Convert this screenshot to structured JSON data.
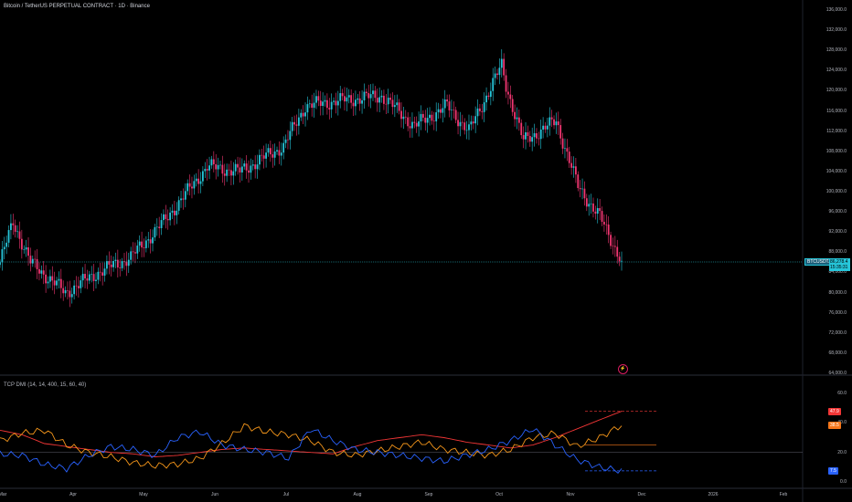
{
  "header": {
    "title": "Bitcoin / TetherUS PERPETUAL CONTRACT · 1D · Binance"
  },
  "price_scale": {
    "labels": [
      "136,000.0",
      "132,000.0",
      "128,000.0",
      "124,000.0",
      "120,000.0",
      "116,000.0",
      "112,000.0",
      "108,000.0",
      "104,000.0",
      "100,000.0",
      "96,000.0",
      "92,000.0",
      "88,000.0",
      "84,000.0",
      "80,000.0",
      "76,000.0",
      "72,000.0",
      "68,000.0",
      "64,000.0"
    ],
    "values": [
      136000,
      132000,
      128000,
      124000,
      120000,
      116000,
      112000,
      108000,
      104000,
      100000,
      96000,
      92000,
      88000,
      84000,
      80000,
      76000,
      72000,
      68000,
      64000
    ]
  },
  "symbol_badge": "BTCUSDT.P",
  "last_price": {
    "value": "86,278.4",
    "countdown": "15:35:31",
    "numeric": 86278.4
  },
  "indicator": {
    "title": "TCP DMI (14, 14, 400, 15, 60, 40)",
    "scale_labels": [
      "60.0",
      "40.0",
      "20.0",
      "0.0"
    ],
    "scale_values": [
      60,
      40,
      20,
      0
    ],
    "badges": [
      {
        "text": "47.9",
        "value": 47.9,
        "color": "#f23636"
      },
      {
        "text": "38.5",
        "value": 38.5,
        "color": "#f5761a"
      },
      {
        "text": "7.5",
        "value": 7.5,
        "color": "#2962ff"
      }
    ]
  },
  "time_axis": {
    "labels": [
      "Mar",
      "Apr",
      "May",
      "Jun",
      "Jul",
      "Aug",
      "Sep",
      "Oct",
      "Nov",
      "Dec",
      "2026",
      "Feb"
    ]
  },
  "event_icon": "lightning-icon",
  "colors": {
    "background": "#000000",
    "up_candle": "#26c6da",
    "down_candle": "#f23672",
    "line_red": "#f23636",
    "line_orange": "#f5961a",
    "line_blue": "#2962ff",
    "price_line": "#26c6da"
  },
  "chart_data": [
    {
      "type": "candlestick",
      "title": "Bitcoin / TetherUS PERPETUAL CONTRACT · 1D · Binance",
      "ylim": [
        64000,
        136000
      ],
      "x_range": [
        "Mar",
        "Nov"
      ],
      "closes_key_points": [
        {
          "t": 0,
          "price": 86000
        },
        {
          "t": 6,
          "price": 94000
        },
        {
          "t": 14,
          "price": 86000
        },
        {
          "t": 30,
          "price": 80000
        },
        {
          "t": 45,
          "price": 84000
        },
        {
          "t": 60,
          "price": 87000
        },
        {
          "t": 75,
          "price": 94000
        },
        {
          "t": 95,
          "price": 105000
        },
        {
          "t": 110,
          "price": 104000
        },
        {
          "t": 130,
          "price": 109000
        },
        {
          "t": 140,
          "price": 117000
        },
        {
          "t": 155,
          "price": 118000
        },
        {
          "t": 175,
          "price": 119000
        },
        {
          "t": 190,
          "price": 113000
        },
        {
          "t": 205,
          "price": 117000
        },
        {
          "t": 215,
          "price": 112000
        },
        {
          "t": 230,
          "price": 125000
        },
        {
          "t": 232,
          "price": 121000
        },
        {
          "t": 240,
          "price": 110000
        },
        {
          "t": 255,
          "price": 114000
        },
        {
          "t": 265,
          "price": 101000
        },
        {
          "t": 275,
          "price": 95000
        },
        {
          "t": 285,
          "price": 86278
        }
      ]
    },
    {
      "type": "line",
      "title": "TCP DMI (14, 14, 400, 15, 60, 40)",
      "ylim": [
        0,
        60
      ],
      "series": [
        {
          "values": [
            35,
            32,
            26,
            24,
            22,
            20,
            19,
            17,
            18,
            20,
            22,
            23,
            22,
            21,
            20,
            19,
            24,
            28,
            30,
            32,
            30,
            27,
            25,
            23,
            25,
            30,
            36,
            42,
            47.9
          ]
        },
        {
          "values": [
            28,
            33,
            35,
            25,
            20,
            17,
            13,
            11,
            12,
            16,
            26,
            38,
            34,
            32,
            28,
            20,
            18,
            21,
            24,
            27,
            22,
            20,
            18,
            22,
            30,
            33,
            24,
            30,
            38.5
          ]
        },
        {
          "values": [
            19,
            18,
            12,
            9,
            18,
            24,
            22,
            18,
            30,
            34,
            25,
            22,
            20,
            16,
            36,
            28,
            22,
            20,
            18,
            16,
            14,
            18,
            22,
            28,
            36,
            25,
            15,
            10,
            7.5
          ]
        }
      ]
    }
  ]
}
